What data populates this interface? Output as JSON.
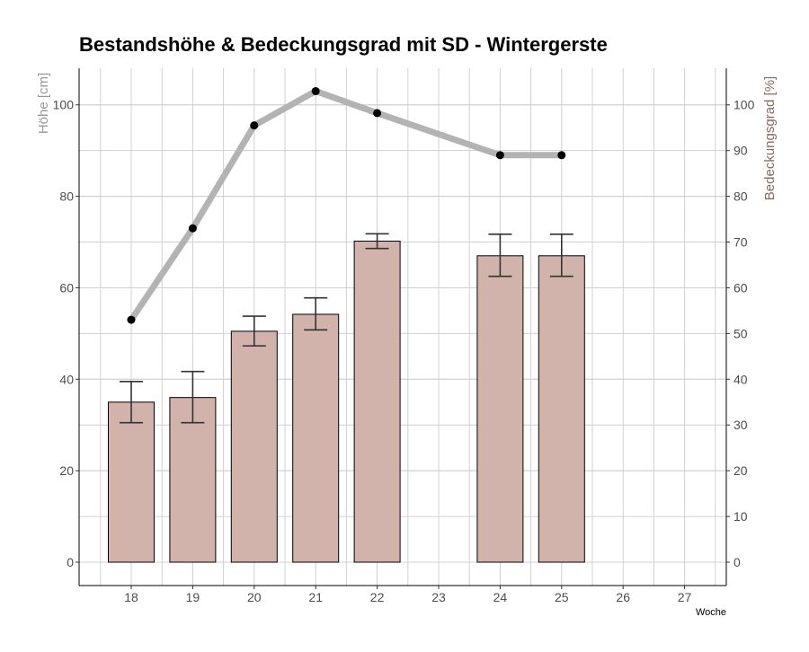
{
  "chart_data": {
    "type": "bar",
    "title": "Bestandshöhe & Bedeckungsgrad mit SD - Wintergerste",
    "xlabel": "Woche",
    "ylabel_left": "Höhe [cm]",
    "ylabel_right": "Bedeckungsgrad [%]",
    "categories": [
      "18",
      "19",
      "20",
      "21",
      "22",
      "23",
      "24",
      "25",
      "26",
      "27"
    ],
    "ylim_left": [
      0,
      108
    ],
    "ylim_right": [
      0,
      108
    ],
    "yticks_left": [
      0,
      20,
      40,
      60,
      80,
      100
    ],
    "yticks_right": [
      0,
      10,
      20,
      30,
      40,
      50,
      60,
      70,
      80,
      90,
      100
    ],
    "grid": true,
    "series": [
      {
        "type": "bar",
        "axis": "left",
        "x": [
          18,
          19,
          20,
          21,
          22,
          24,
          25
        ],
        "values": [
          35,
          36,
          50.5,
          54.2,
          70.2,
          67,
          67
        ],
        "sd_low": [
          30.5,
          30.5,
          47.3,
          50.8,
          68.6,
          62.5,
          62.5
        ],
        "sd_high": [
          39.5,
          41.7,
          53.8,
          57.8,
          71.8,
          71.7,
          71.7
        ]
      },
      {
        "type": "line",
        "axis": "right",
        "x": [
          18,
          19,
          20,
          21,
          22,
          24,
          25
        ],
        "values": [
          53,
          73,
          95.5,
          103,
          98.2,
          89,
          89
        ]
      }
    ],
    "colors": {
      "bar_fill": "#d1b3ac",
      "bar_stroke": "#000000",
      "line": "#b3b3b3",
      "point": "#000000",
      "errorbar": "#333333",
      "grid": "#d0d0d0",
      "left_axis_title": "#999999",
      "right_axis_title": "#8c6a5e",
      "tick_label": "#4d4d4d"
    }
  }
}
